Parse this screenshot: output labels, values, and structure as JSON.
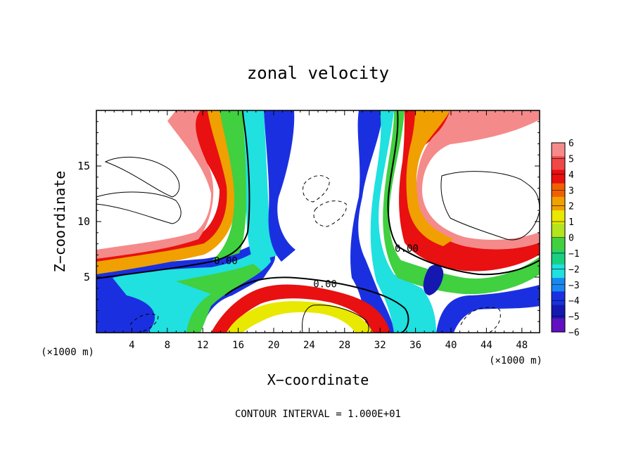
{
  "chart_data": {
    "type": "heatmap",
    "title": "zonal velocity",
    "xlabel": "X−coordinate",
    "ylabel": "Z−coordinate",
    "x_units_label": "(×1000 m)",
    "xlim": [
      0,
      50
    ],
    "ylim": [
      0,
      20
    ],
    "x_ticks": [
      4,
      8,
      12,
      16,
      20,
      24,
      28,
      32,
      36,
      40,
      44,
      48
    ],
    "y_ticks": [
      5,
      10,
      15
    ],
    "colorbar": {
      "levels": [
        6,
        5,
        4,
        3,
        2,
        1,
        0,
        -1,
        -2,
        -3,
        -4,
        -5,
        -6
      ],
      "labels": [
        "6",
        "5",
        "4",
        "3",
        "2",
        "1",
        "0",
        "−1",
        "−2",
        "−3",
        "−4",
        "−5",
        "−6"
      ],
      "colors": [
        "#f58a8a",
        "#f04848",
        "#e81010",
        "#f06000",
        "#f0a000",
        "#e8e800",
        "#b4e41e",
        "#40d040",
        "#18d080",
        "#20e0e0",
        "#1888f0",
        "#1a30e0",
        "#1418b0",
        "#6010c0"
      ]
    },
    "contour_labels": [
      {
        "text": "0.00",
        "x": 14.6,
        "z": 6.5
      },
      {
        "text": "0.00",
        "x": 25.8,
        "z": 4.4
      },
      {
        "text": "0.00",
        "x": 35.0,
        "z": 7.6
      }
    ],
    "footer": "CONTOUR INTERVAL = 1.000E+01",
    "grid": false
  }
}
